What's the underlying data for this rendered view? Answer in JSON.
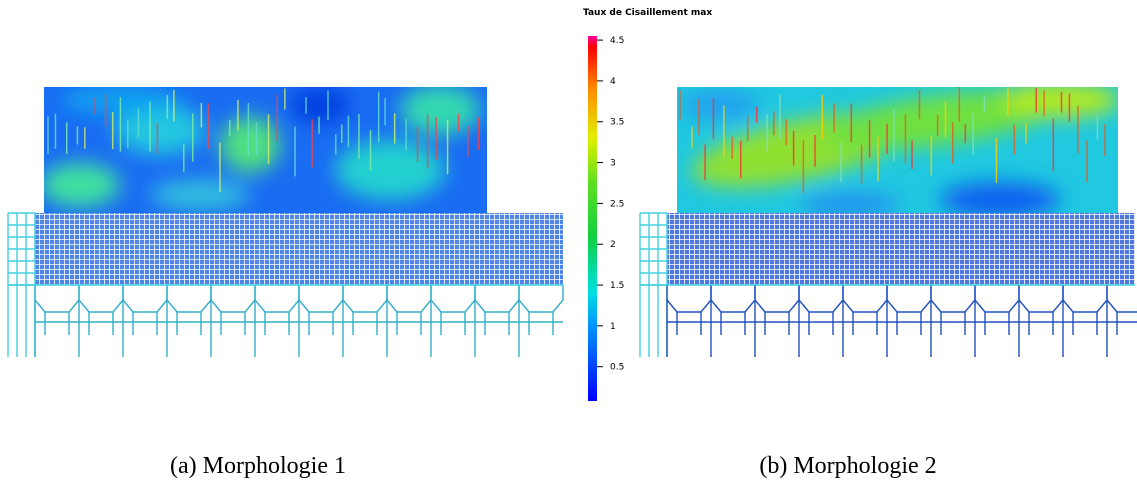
{
  "colorbar": {
    "title": "Taux de Cisaillement max",
    "ticks": [
      0.5,
      1,
      1.5,
      2,
      2.5,
      3,
      3.5,
      4,
      4.5
    ],
    "lim": [
      0.08,
      4.55
    ]
  },
  "panels": [
    {
      "caption": "(a) Morphologie 1"
    },
    {
      "caption": "(b) Morphologie 2"
    }
  ]
}
